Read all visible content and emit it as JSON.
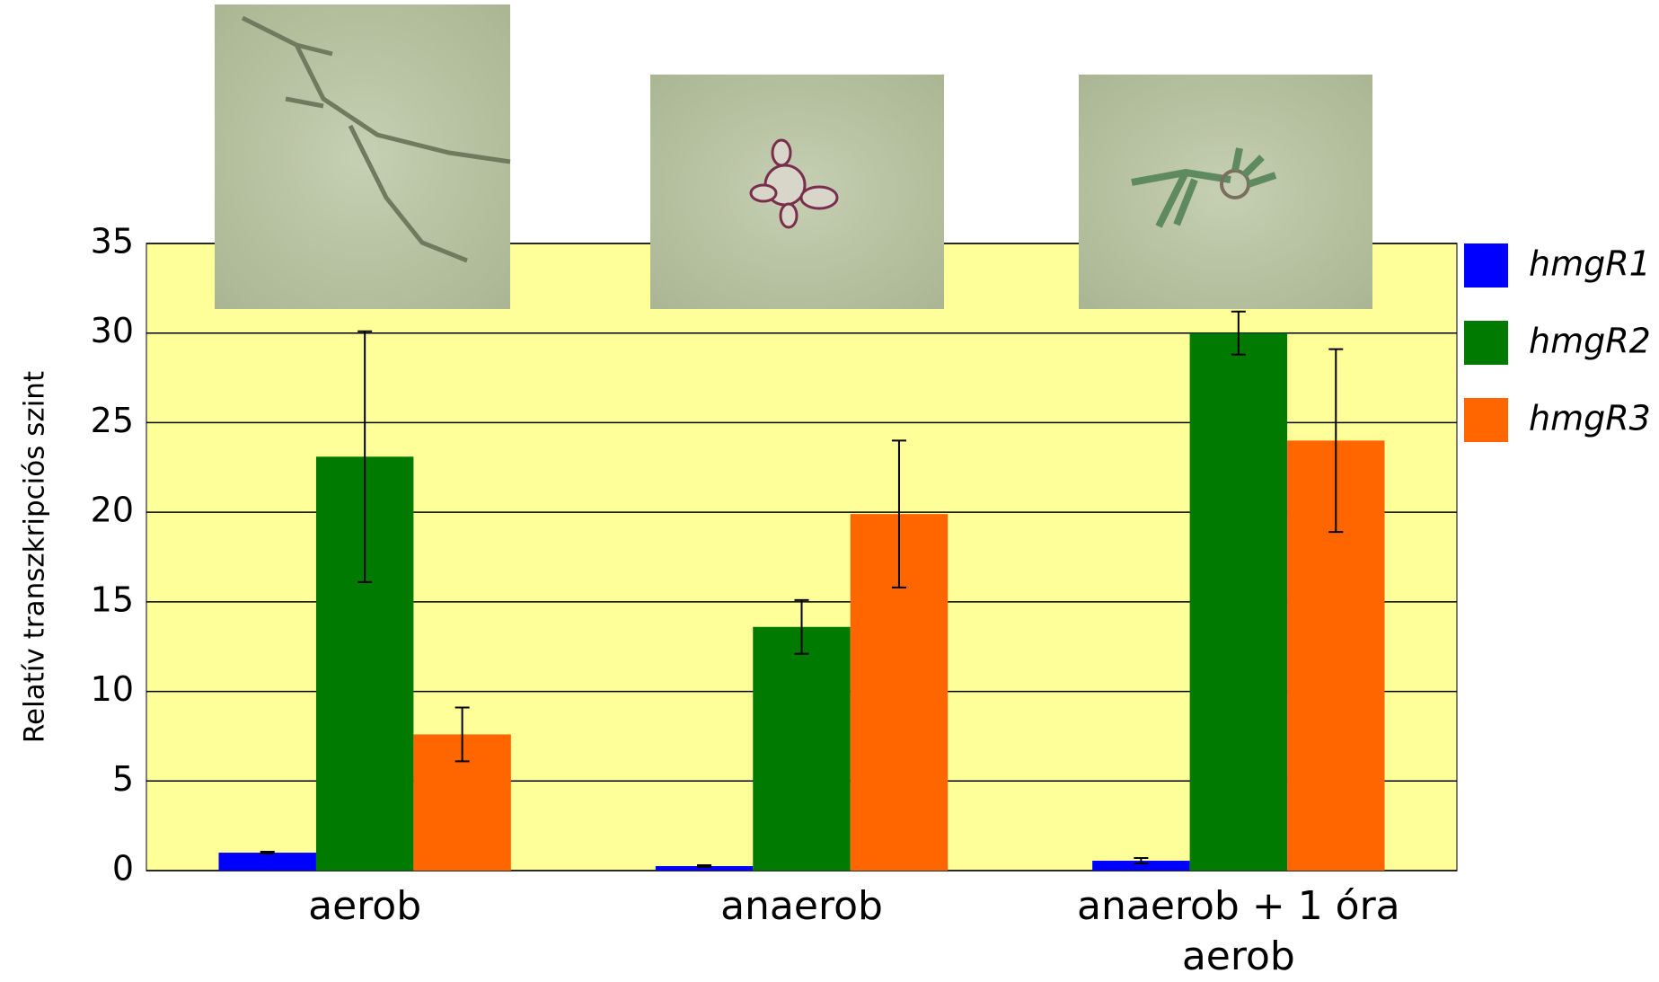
{
  "chart_data": {
    "type": "bar",
    "y_label": "Relatív transzkripciós szint",
    "categories": [
      "aerob",
      "anaerob",
      "anaerob + 1 óra aerob"
    ],
    "series": [
      {
        "name": "hmgR1",
        "color": "#0000ff",
        "values": [
          1.0,
          0.25,
          0.55
        ],
        "errors": [
          0.05,
          0.05,
          0.15
        ]
      },
      {
        "name": "hmgR2",
        "color": "#007a00",
        "values": [
          23.1,
          13.6,
          30.0
        ],
        "errors": [
          7.0,
          1.5,
          1.2
        ]
      },
      {
        "name": "hmgR3",
        "color": "#ff6600",
        "values": [
          7.6,
          19.9,
          24.0
        ],
        "errors": [
          1.5,
          4.1,
          5.1
        ]
      }
    ],
    "ylim": [
      0,
      35
    ],
    "yticks": [
      0,
      5,
      10,
      15,
      20,
      25,
      30,
      35
    ],
    "grid": true,
    "legend": "right"
  }
}
